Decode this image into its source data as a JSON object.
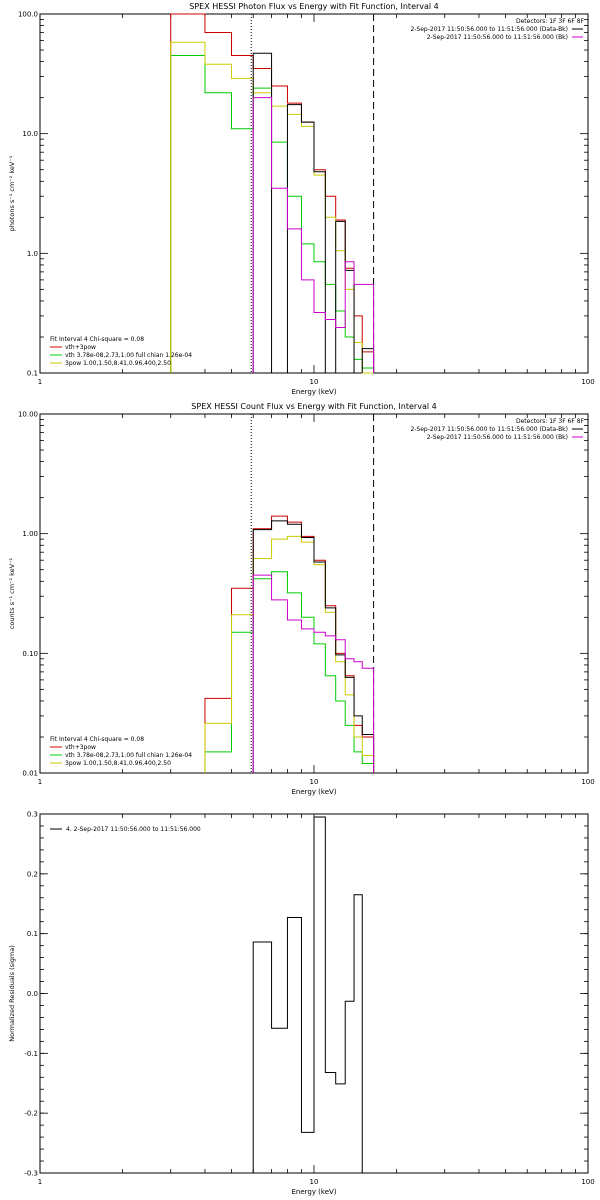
{
  "chart_data": [
    {
      "type": "line",
      "title": "SPEX HESSI Photon Flux vs Energy with Fit Function, Interval 4",
      "xlabel": "Energy (keV)",
      "ylabel": "photons s⁻¹ cm⁻² keV⁻¹",
      "xlim": [
        1,
        100
      ],
      "ylim": [
        0.1,
        100
      ],
      "x_scale": "log",
      "y_scale": "log",
      "x_ticks": [
        {
          "v": 1,
          "label": "1"
        },
        {
          "v": 10,
          "label": "10"
        },
        {
          "v": 100,
          "label": "100"
        }
      ],
      "y_ticks": [
        {
          "v": 0.1,
          "label": "0.1"
        },
        {
          "v": 1,
          "label": "1.0"
        },
        {
          "v": 10,
          "label": "10.0"
        },
        {
          "v": 100,
          "label": "100.0"
        }
      ],
      "vlines": [
        {
          "x": 5.9,
          "style": "dotted"
        },
        {
          "x": 16.5,
          "style": "dashed"
        }
      ],
      "header_lines": [
        {
          "text": "Detectors: 1F 3F 6F 8F",
          "color": ""
        },
        {
          "text": "2-Sep-2017 11:50:56.000 to 11:51:56.000 (Data-Bk)",
          "color": "#000000"
        },
        {
          "text": "2-Sep-2017 11:50:56.000 to 11:51:56.000 (Bk)",
          "color": "#cc00cc"
        }
      ],
      "legend_title": "Fit Interval 4   Chi-square = 0.08",
      "legend": [
        {
          "text": "vth+3pow",
          "color": "#cc0000"
        },
        {
          "text": "vth 3.78e-08,2.73,1.00   full chian 1.26e-04",
          "color": "#00cc00"
        },
        {
          "text": "3pow 1.00,1.50,8.41,0.96,400,2.50",
          "color": "#cccc00"
        }
      ],
      "edges": [
        3.0,
        4.0,
        5.0,
        6.0,
        7.0,
        8.0,
        9.0,
        10.0,
        11.0,
        12.0,
        13.0,
        14.0,
        15.0,
        16.5
      ],
      "series": [
        {
          "color": "#cc0000",
          "values": [
            100,
            70,
            45,
            35,
            25,
            18,
            12.5,
            5,
            3,
            1.9,
            0.75,
            0.3,
            0.15
          ]
        },
        {
          "color": "#00cc00",
          "values": [
            45,
            22,
            11,
            24,
            8.5,
            3,
            1.2,
            0.85,
            0.55,
            0.33,
            0.2,
            0.13,
            0.11
          ]
        },
        {
          "color": "#cccc00",
          "values": [
            58,
            38,
            29,
            22,
            17,
            14.5,
            11.5,
            4.5,
            2,
            1.05,
            0.5,
            0.18,
            0.1
          ]
        },
        {
          "color": "#000000",
          "values": [
            null,
            null,
            null,
            47,
            null,
            17.5,
            12.5,
            4.8,
            null,
            1.85,
            0.72,
            null,
            0.16
          ]
        },
        {
          "color": "#cc00cc",
          "values": [
            null,
            null,
            null,
            20,
            3.5,
            1.6,
            0.6,
            0.32,
            0.28,
            0.24,
            0.85,
            0.55,
            0.55
          ]
        }
      ]
    },
    {
      "type": "line",
      "title": "SPEX HESSI Count Flux vs Energy with Fit Function, Interval 4",
      "xlabel": "Energy (keV)",
      "ylabel": "counts s⁻¹ cm⁻² keV⁻¹",
      "xlim": [
        1,
        100
      ],
      "ylim": [
        0.01,
        10
      ],
      "x_scale": "log",
      "y_scale": "log",
      "x_ticks": [
        {
          "v": 1,
          "label": "1"
        },
        {
          "v": 10,
          "label": "10"
        },
        {
          "v": 100,
          "label": "100"
        }
      ],
      "y_ticks": [
        {
          "v": 0.01,
          "label": "0.01"
        },
        {
          "v": 0.1,
          "label": "0.10"
        },
        {
          "v": 1,
          "label": "1.00"
        },
        {
          "v": 10,
          "label": "10.00"
        }
      ],
      "vlines": [
        {
          "x": 5.9,
          "style": "dotted"
        },
        {
          "x": 16.5,
          "style": "dashed"
        }
      ],
      "header_lines": [
        {
          "text": "Detectors: 1F 3F 6F 8F",
          "color": ""
        },
        {
          "text": "2-Sep-2017 11:50:56.000 to 11:51:56.000 (Data-Bk)",
          "color": "#000000"
        },
        {
          "text": "2-Sep-2017 11:50:56.000 to 11:51:56.000 (Bk)",
          "color": "#cc00cc"
        }
      ],
      "legend_title": "Fit Interval 4   Chi-square = 0.08",
      "legend": [
        {
          "text": "vth+3pow",
          "color": "#cc0000"
        },
        {
          "text": "vth 3.78e-08,2.73,1.00   full chian 1.26e-04",
          "color": "#00cc00"
        },
        {
          "text": "3pow 1.00,1.50,8.41,0.96,400,2.50",
          "color": "#cccc00"
        }
      ],
      "edges": [
        4.0,
        5.0,
        6.0,
        7.0,
        8.0,
        9.0,
        10.0,
        11.0,
        12.0,
        13.0,
        14.0,
        15.0,
        16.5
      ],
      "series": [
        {
          "color": "#cc0000",
          "values": [
            0.042,
            0.35,
            1.1,
            1.4,
            1.25,
            0.95,
            0.6,
            0.25,
            0.1,
            0.065,
            0.025,
            0.02
          ]
        },
        {
          "color": "#00cc00",
          "values": [
            0.015,
            0.15,
            0.42,
            0.48,
            0.32,
            0.2,
            0.12,
            0.065,
            0.04,
            0.025,
            0.015,
            0.012
          ]
        },
        {
          "color": "#cccc00",
          "values": [
            0.026,
            0.21,
            0.62,
            0.9,
            0.95,
            0.85,
            0.55,
            0.22,
            0.085,
            0.045,
            0.02,
            0.014
          ]
        },
        {
          "color": "#000000",
          "values": [
            null,
            null,
            1.08,
            1.28,
            1.2,
            0.93,
            0.58,
            0.24,
            0.097,
            0.063,
            0.03,
            0.021
          ]
        },
        {
          "color": "#cc00cc",
          "values": [
            null,
            null,
            0.45,
            0.28,
            0.19,
            0.16,
            0.15,
            0.14,
            0.13,
            0.09,
            0.085,
            0.075
          ]
        }
      ]
    },
    {
      "type": "line",
      "title": "",
      "xlabel": "Energy (keV)",
      "ylabel": "Normalized Residuals (sigma)",
      "xlim": [
        1,
        100
      ],
      "ylim": [
        -0.3,
        0.3
      ],
      "x_scale": "log",
      "y_scale": "linear",
      "x_ticks": [
        {
          "v": 1,
          "label": "1"
        },
        {
          "v": 10,
          "label": "10"
        },
        {
          "v": 100,
          "label": "100"
        }
      ],
      "y_ticks": [
        {
          "v": -0.3,
          "label": "-0.3"
        },
        {
          "v": -0.2,
          "label": "-0.2"
        },
        {
          "v": -0.1,
          "label": "-0.1"
        },
        {
          "v": 0,
          "label": "0.0"
        },
        {
          "v": 0.1,
          "label": "0.1"
        },
        {
          "v": 0.2,
          "label": "0.2"
        },
        {
          "v": 0.3,
          "label": "0.3"
        }
      ],
      "vlines": [],
      "header_lines": [],
      "legend_title": "",
      "legend": [
        {
          "text": "4.  2-Sep-2017 11:50:56.000 to 11:51:56.000",
          "color": "#000000"
        }
      ],
      "edges": [
        6.0,
        7.0,
        8.0,
        9.0,
        10.0,
        11.0,
        12.0,
        13.0,
        14.0,
        15.0,
        16.5
      ],
      "series": [
        {
          "color": "#000000",
          "values": [
            0.086,
            -0.058,
            0.127,
            -0.232,
            0.295,
            -0.132,
            -0.151,
            -0.013,
            0.165
          ],
          "drop_ends": true
        }
      ]
    }
  ]
}
